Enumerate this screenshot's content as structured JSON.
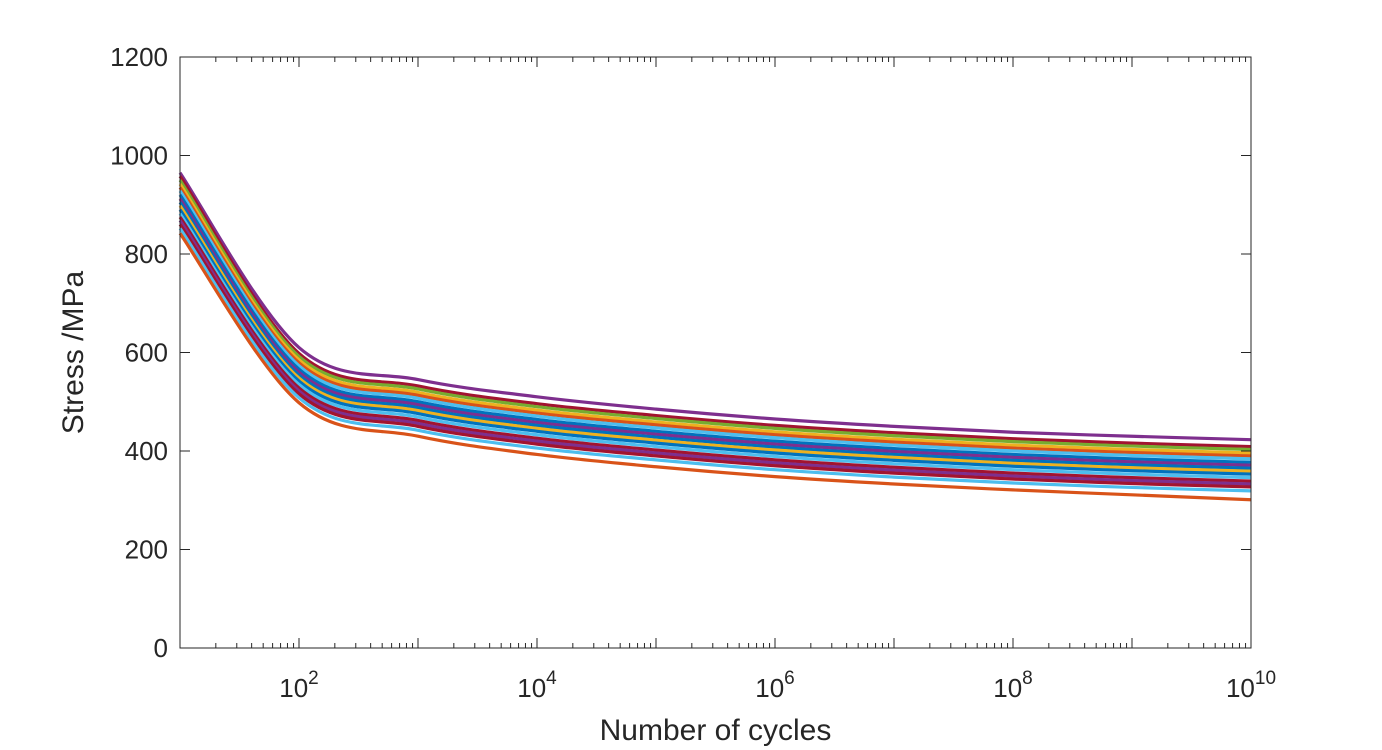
{
  "chart_data": {
    "type": "line",
    "title": "",
    "xlabel": "Number of cycles",
    "ylabel": "Stress /MPa",
    "xscale": "log",
    "xlim": [
      10,
      10000000000
    ],
    "ylim": [
      0,
      1200
    ],
    "grid": false,
    "legend": "none",
    "x_ticks": [
      {
        "value": 100,
        "base": "10",
        "exp": "2"
      },
      {
        "value": 10000,
        "base": "10",
        "exp": "4"
      },
      {
        "value": 1000000,
        "base": "10",
        "exp": "6"
      },
      {
        "value": 100000000,
        "base": "10",
        "exp": "8"
      },
      {
        "value": 10000000000,
        "base": "10",
        "exp": "10"
      }
    ],
    "y_ticks": [
      "0",
      "200",
      "400",
      "600",
      "800",
      "1000",
      "1200"
    ],
    "x": [
      10,
      100,
      1000,
      10000,
      100000,
      1000000,
      10000000,
      100000000,
      1000000000,
      10000000000
    ],
    "series": [
      {
        "color": "#7E2F8E",
        "values": [
          965,
          610,
          545,
          510,
          485,
          465,
          450,
          438,
          430,
          423
        ]
      },
      {
        "color": "#A2142F",
        "values": [
          958,
          598,
          532,
          496,
          472,
          452,
          437,
          425,
          416,
          409
        ]
      },
      {
        "color": "#77AC30",
        "values": [
          950,
          592,
          526,
          490,
          466,
          446,
          431,
          419,
          410,
          403
        ]
      },
      {
        "color": "#EDB120",
        "values": [
          942,
          585,
          519,
          483,
          459,
          439,
          424,
          412,
          403,
          396
        ]
      },
      {
        "color": "#D95319",
        "values": [
          935,
          579,
          513,
          477,
          453,
          433,
          418,
          406,
          397,
          390
        ]
      },
      {
        "color": "#4DBEEE",
        "values": [
          928,
          573,
          507,
          471,
          447,
          427,
          412,
          400,
          391,
          384
        ]
      },
      {
        "color": "#0072BD",
        "values": [
          920,
          566,
          500,
          464,
          440,
          420,
          405,
          393,
          384,
          377
        ]
      },
      {
        "color": "#7E2F8E",
        "values": [
          912,
          560,
          494,
          458,
          434,
          414,
          399,
          387,
          378,
          371
        ]
      },
      {
        "color": "#0072BD",
        "values": [
          905,
          554,
          488,
          452,
          428,
          408,
          393,
          381,
          372,
          365
        ]
      },
      {
        "color": "#EDB120",
        "values": [
          898,
          548,
          482,
          446,
          422,
          402,
          387,
          375,
          366,
          359
        ]
      },
      {
        "color": "#0072BD",
        "values": [
          890,
          542,
          476,
          440,
          416,
          396,
          381,
          369,
          360,
          353
        ]
      },
      {
        "color": "#4DBEEE",
        "values": [
          882,
          535,
          469,
          433,
          409,
          389,
          374,
          362,
          353,
          346
        ]
      },
      {
        "color": "#A2142F",
        "values": [
          875,
          528,
          462,
          426,
          402,
          382,
          367,
          355,
          346,
          339
        ]
      },
      {
        "color": "#7E2F8E",
        "values": [
          868,
          522,
          456,
          420,
          396,
          376,
          361,
          349,
          340,
          333
        ]
      },
      {
        "color": "#A2142F",
        "values": [
          860,
          516,
          450,
          414,
          390,
          370,
          355,
          343,
          334,
          327
        ]
      },
      {
        "color": "#4DBEEE",
        "values": [
          852,
          508,
          442,
          406,
          382,
          362,
          347,
          335,
          326,
          319
        ]
      },
      {
        "color": "#D95319",
        "values": [
          842,
          498,
          430,
          393,
          368,
          348,
          333,
          321,
          311,
          301
        ]
      }
    ]
  }
}
